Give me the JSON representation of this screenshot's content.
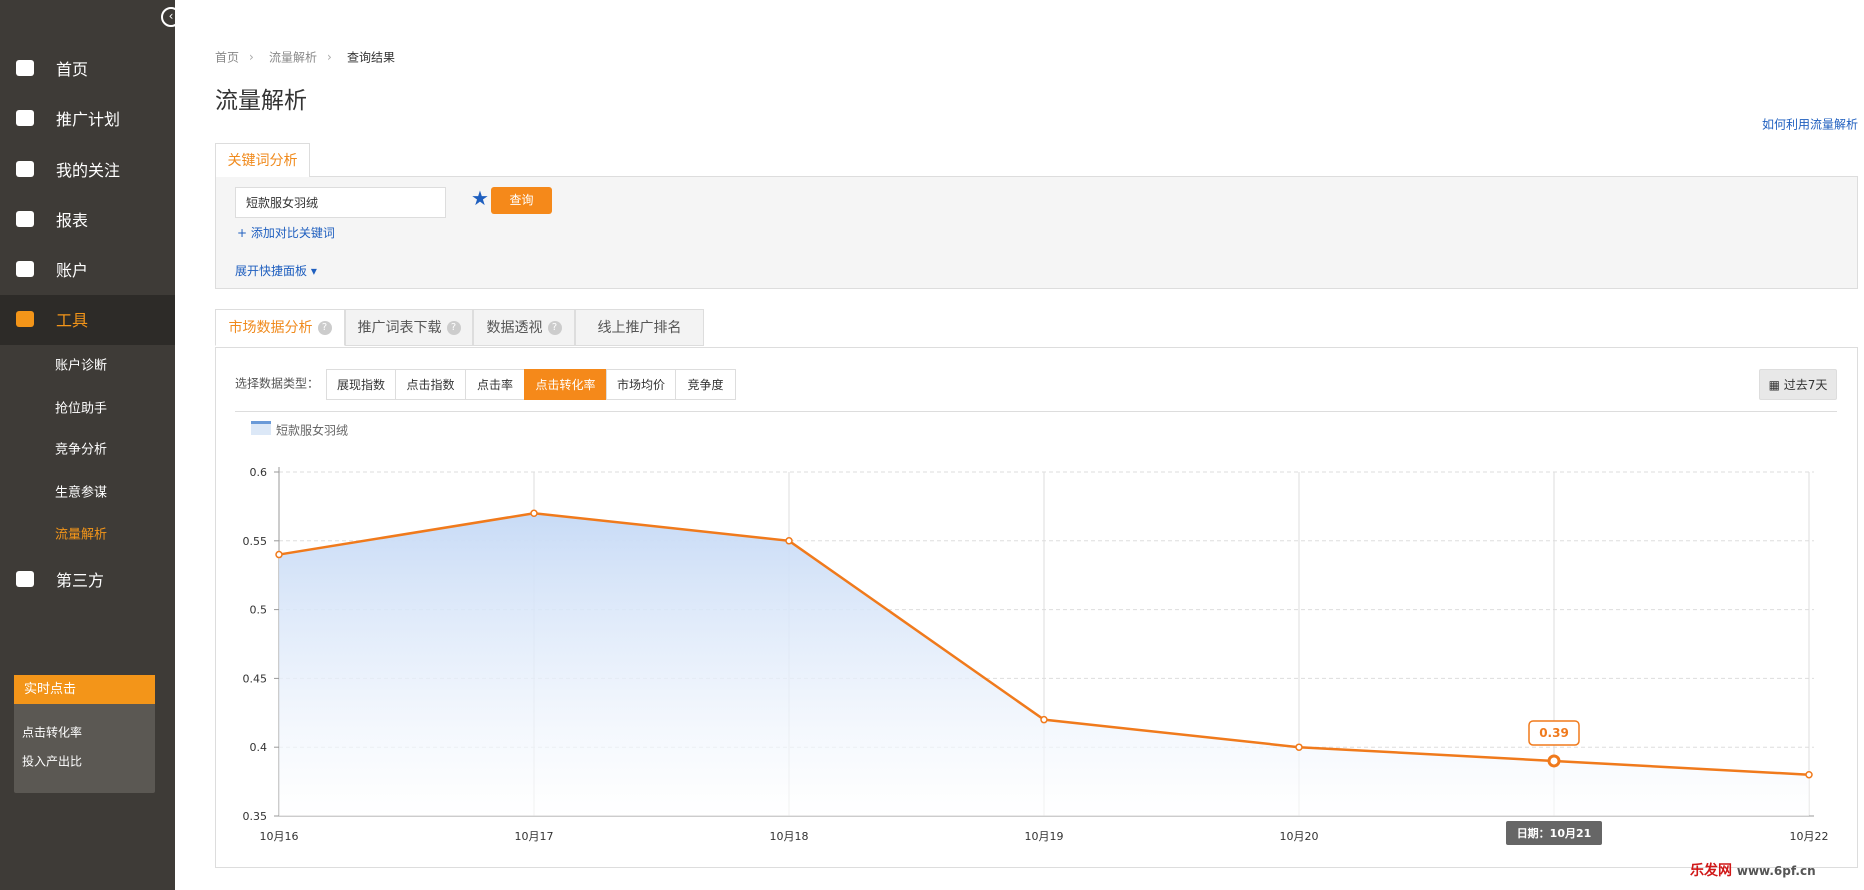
{
  "sidebar": {
    "nav": [
      "首页",
      "推广计划",
      "我的关注",
      "报表",
      "账户",
      "工具",
      "第三方"
    ],
    "tools_sub": [
      "账户诊断",
      "抢位助手",
      "竞争分析",
      "生意参谋",
      "流量解析"
    ],
    "realtime": {
      "title": "实时点击",
      "items": [
        "点击转化率",
        "投入产出比"
      ]
    }
  },
  "breadcrumb": [
    "首页",
    "流量解析",
    "查询结果"
  ],
  "page_title": "流量解析",
  "help_link": "如何利用流量解析",
  "keyword_tab": "关键词分析",
  "search": {
    "input": "短款服女羽绒",
    "button": "查询",
    "add_compare": "添加对比关键词",
    "expand": "展开快捷面板"
  },
  "tabs": [
    "市场数据分析",
    "推广词表下载",
    "数据透视",
    "线上推广排名"
  ],
  "data_type_label": "选择数据类型：",
  "data_types": [
    "展现指数",
    "点击指数",
    "点击率",
    "点击转化率",
    "市场均价",
    "竞争度"
  ],
  "date_range": "过去7天",
  "watermark": {
    "name": "乐发网",
    "url": "www.6pf.cn"
  },
  "chart_data": {
    "type": "line",
    "categories": [
      "10月16",
      "10月17",
      "10月18",
      "10月19",
      "10月20",
      "10月21",
      "10月22"
    ],
    "series": [
      {
        "name": "短款服女羽绒",
        "color": "#f07a1c",
        "values": [
          0.54,
          0.57,
          0.55,
          0.42,
          0.4,
          0.39,
          0.38
        ]
      }
    ],
    "area_color": "#c8dbf6",
    "ylim": [
      0.35,
      0.6
    ],
    "yticks": [
      0.35,
      0.4,
      0.45,
      0.5,
      0.55,
      0.6
    ],
    "grid": true,
    "tooltip": {
      "index": 5,
      "date_label": "日期：10月21"
    }
  }
}
